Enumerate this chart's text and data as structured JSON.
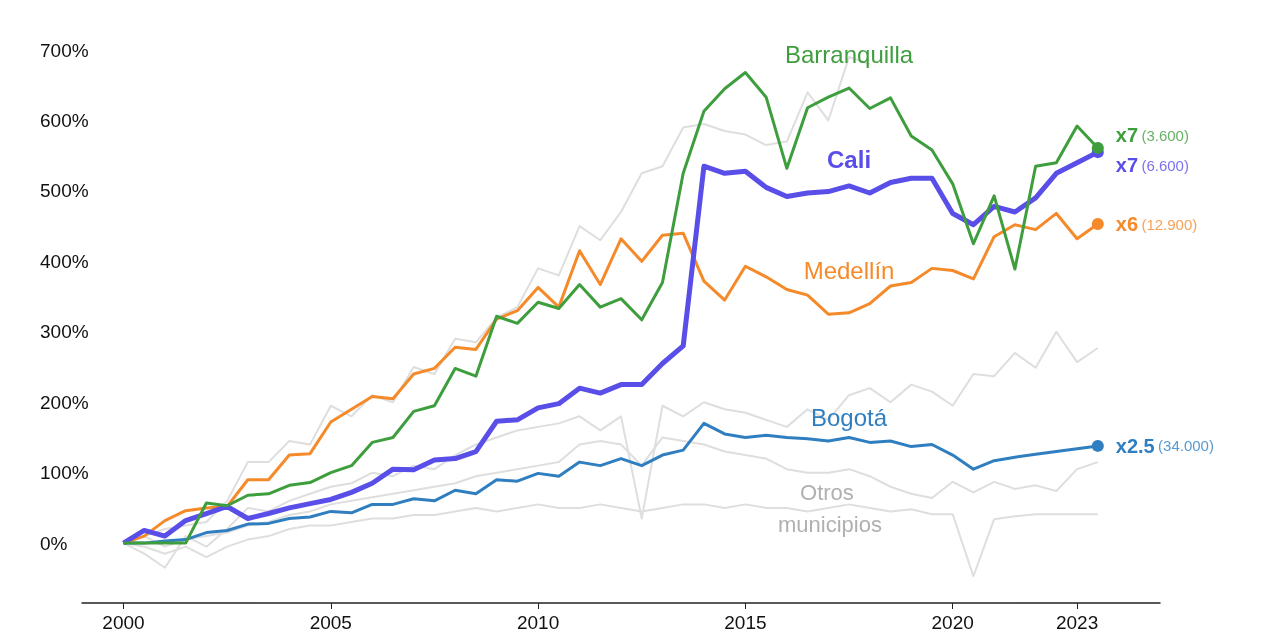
{
  "chart_data": {
    "type": "line",
    "x": [
      2000,
      2000.5,
      2001,
      2001.5,
      2002,
      2002.5,
      2003,
      2003.5,
      2004,
      2004.5,
      2005,
      2005.5,
      2006,
      2006.5,
      2007,
      2007.5,
      2008,
      2008.5,
      2009,
      2009.5,
      2010,
      2010.5,
      2011,
      2011.5,
      2012,
      2012.5,
      2013,
      2013.5,
      2014,
      2014.5,
      2015,
      2015.5,
      2016,
      2016.5,
      2017,
      2017.5,
      2018,
      2018.5,
      2019,
      2019.5,
      2020,
      2020.5,
      2021,
      2021.5,
      2022,
      2022.5,
      2023,
      2023.5
    ],
    "series": [
      {
        "color": "#dedede",
        "values": [
          0,
          10,
          20,
          25,
          30,
          60,
          115,
          115,
          145,
          140,
          195,
          180,
          210,
          200,
          250,
          240,
          290,
          285,
          320,
          335,
          390,
          380,
          450,
          430,
          470,
          525,
          535,
          590,
          595,
          585,
          580,
          565,
          570,
          640,
          600,
          690,
          680,
          null,
          null,
          null,
          null,
          null,
          null,
          null,
          null,
          null,
          null,
          null
        ]
      },
      {
        "color": "#dedede",
        "values": [
          0,
          -15,
          -35,
          10,
          -5,
          20,
          50,
          45,
          60,
          70,
          80,
          85,
          100,
          95,
          110,
          105,
          125,
          140,
          150,
          160,
          165,
          170,
          180,
          160,
          180,
          35,
          195,
          180,
          200,
          190,
          185,
          175,
          165,
          190,
          175,
          210,
          220,
          200,
          225,
          215,
          195,
          240,
          237,
          270,
          249,
          300,
          257,
          277
        ]
      },
      {
        "color": "#dedede",
        "values": [
          0,
          10,
          -5,
          5,
          10,
          15,
          25,
          30,
          40,
          45,
          55,
          60,
          65,
          70,
          75,
          80,
          85,
          95,
          100,
          105,
          110,
          115,
          140,
          145,
          140,
          110,
          150,
          145,
          140,
          130,
          125,
          120,
          105,
          100,
          100,
          105,
          95,
          80,
          70,
          64,
          87,
          72,
          87,
          77,
          82,
          74,
          105,
          115
        ]
      },
      {
        "color": "#dedede",
        "values": [
          0,
          -5,
          -15,
          -5,
          -20,
          -5,
          5,
          10,
          20,
          25,
          25,
          30,
          35,
          35,
          40,
          40,
          45,
          50,
          45,
          50,
          55,
          50,
          50,
          55,
          50,
          45,
          50,
          55,
          55,
          50,
          55,
          50,
          50,
          45,
          50,
          55,
          50,
          45,
          48,
          41,
          41,
          -47,
          34,
          38,
          41,
          41,
          41,
          41
        ]
      },
      {
        "name": "Bogotá",
        "color": "#2f7fc0",
        "values": [
          0,
          0,
          3,
          5,
          15,
          18,
          27,
          28,
          35,
          37,
          45,
          43,
          55,
          55,
          63,
          60,
          75,
          70,
          90,
          88,
          99,
          95,
          115,
          110,
          120,
          110,
          125,
          132,
          170,
          155,
          150,
          153,
          150,
          148,
          145,
          150,
          143,
          145,
          137,
          140,
          125,
          105,
          117,
          122,
          126,
          130,
          134,
          138
        ],
        "value_labels": [
          null,
          null,
          null,
          null,
          null,
          null,
          null,
          null,
          null,
          null,
          null,
          null,
          null,
          null,
          null,
          null,
          null,
          null,
          null,
          null,
          null,
          null,
          null,
          null,
          null,
          null,
          null,
          null,
          null,
          null,
          null,
          null,
          null,
          null,
          null,
          null,
          null,
          null,
          null,
          null,
          null,
          null,
          null,
          null,
          null,
          null,
          null,
          "x2.5 (34.000)"
        ]
      },
      {
        "name": "Medellín",
        "color": "#f58a2a",
        "values": [
          0,
          10,
          32,
          46,
          50,
          52,
          90,
          90,
          125,
          127,
          172,
          190,
          208,
          205,
          240,
          248,
          278,
          275,
          318,
          330,
          363,
          335,
          415,
          367,
          432,
          400,
          437,
          440,
          372,
          345,
          393,
          378,
          360,
          352,
          325,
          327,
          340,
          365,
          370,
          390,
          387,
          375,
          435,
          452,
          445,
          468,
          432,
          453
        ],
        "value_labels": [
          null,
          null,
          null,
          null,
          null,
          null,
          null,
          null,
          null,
          null,
          null,
          null,
          null,
          null,
          null,
          null,
          null,
          null,
          null,
          null,
          null,
          null,
          null,
          null,
          null,
          null,
          null,
          null,
          null,
          null,
          null,
          null,
          null,
          null,
          null,
          null,
          null,
          null,
          null,
          null,
          null,
          null,
          null,
          null,
          null,
          null,
          null,
          "x6 (12.900)"
        ]
      },
      {
        "name": "Cali",
        "color": "#5a4ee8",
        "values": [
          0,
          18,
          10,
          32,
          42,
          52,
          35,
          42,
          50,
          56,
          62,
          72,
          85,
          105,
          104,
          118,
          120,
          130,
          173,
          175,
          192,
          198,
          220,
          213,
          225,
          225,
          255,
          280,
          535,
          525,
          528,
          505,
          492,
          497,
          499,
          507,
          497,
          512,
          518,
          518,
          468,
          452,
          478,
          470,
          490,
          525,
          540,
          555
        ],
        "value_labels": [
          null,
          null,
          null,
          null,
          null,
          null,
          null,
          null,
          null,
          null,
          null,
          null,
          null,
          null,
          null,
          null,
          null,
          null,
          null,
          null,
          null,
          null,
          null,
          null,
          null,
          null,
          null,
          null,
          null,
          null,
          null,
          null,
          null,
          null,
          null,
          null,
          null,
          null,
          null,
          null,
          null,
          null,
          null,
          null,
          null,
          null,
          null,
          "x7 (6.600)"
        ]
      },
      {
        "name": "Barranquilla",
        "color": "#3e9e3e",
        "values": [
          0,
          0,
          0,
          0,
          57,
          53,
          68,
          70,
          82,
          86,
          100,
          110,
          143,
          150,
          187,
          195,
          248,
          237,
          322,
          312,
          342,
          333,
          367,
          335,
          347,
          317,
          370,
          525,
          613,
          645,
          668,
          633,
          532,
          618,
          633,
          646,
          617,
          632,
          578,
          558,
          510,
          425,
          493,
          389,
          535,
          540,
          592,
          561
        ],
        "value_labels": [
          null,
          null,
          null,
          null,
          null,
          null,
          null,
          null,
          null,
          null,
          null,
          null,
          null,
          null,
          null,
          null,
          null,
          null,
          null,
          null,
          null,
          null,
          null,
          null,
          null,
          null,
          null,
          null,
          null,
          null,
          null,
          null,
          null,
          null,
          null,
          null,
          null,
          null,
          null,
          null,
          null,
          null,
          null,
          null,
          null,
          null,
          null,
          "x7 (3.600)"
        ]
      }
    ],
    "annotations": [
      "Otros municipios"
    ],
    "xlim": [
      1999,
      2025
    ],
    "xticks": [
      2000,
      2005,
      2010,
      2015,
      2020,
      2023
    ],
    "ylim": [
      -85,
      700
    ],
    "yticks": [
      {
        "value": 0,
        "label": "0%"
      },
      {
        "value": 100,
        "label": "100%"
      },
      {
        "value": 200,
        "label": "200%"
      },
      {
        "value": 300,
        "label": "300%"
      },
      {
        "value": 400,
        "label": "400%"
      },
      {
        "value": 500,
        "label": "500%"
      },
      {
        "value": 600,
        "label": "600%"
      },
      {
        "value": 700,
        "label": "700%"
      }
    ],
    "grid": false,
    "legend": false
  }
}
